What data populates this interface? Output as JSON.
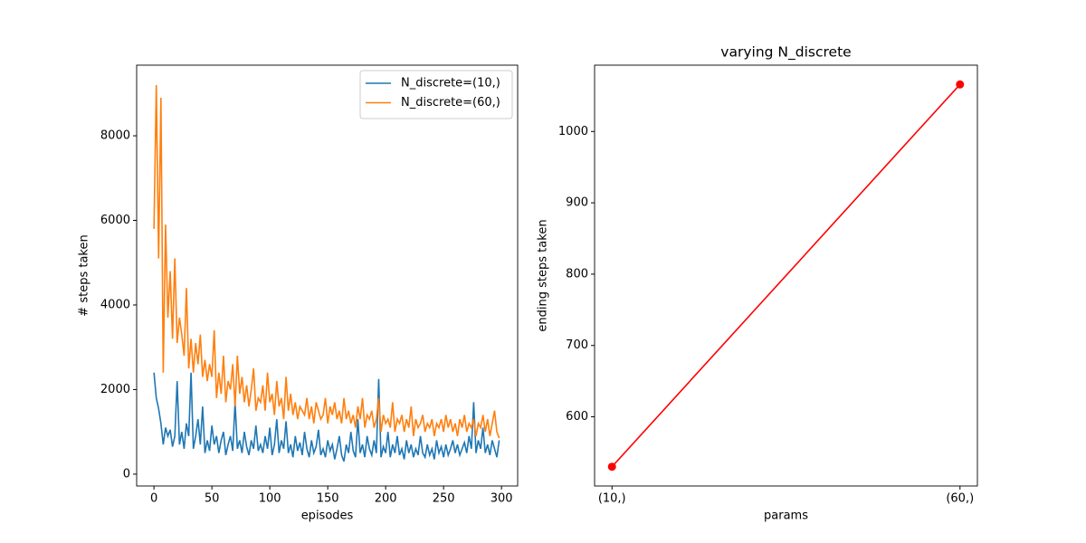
{
  "chart_data": [
    {
      "type": "line",
      "xlabel": "episodes",
      "ylabel": "# steps taken",
      "x": [
        0,
        2,
        4,
        6,
        8,
        10,
        12,
        14,
        16,
        18,
        20,
        22,
        24,
        26,
        28,
        30,
        32,
        34,
        36,
        38,
        40,
        42,
        44,
        46,
        48,
        50,
        52,
        54,
        56,
        58,
        60,
        62,
        64,
        66,
        68,
        70,
        72,
        74,
        76,
        78,
        80,
        82,
        84,
        86,
        88,
        90,
        92,
        94,
        96,
        98,
        100,
        102,
        104,
        106,
        108,
        110,
        112,
        114,
        116,
        118,
        120,
        122,
        124,
        126,
        128,
        130,
        132,
        134,
        136,
        138,
        140,
        142,
        144,
        146,
        148,
        150,
        152,
        154,
        156,
        158,
        160,
        162,
        164,
        166,
        168,
        170,
        172,
        174,
        176,
        178,
        180,
        182,
        184,
        186,
        188,
        190,
        192,
        194,
        196,
        198,
        200,
        202,
        204,
        206,
        208,
        210,
        212,
        214,
        216,
        218,
        220,
        222,
        224,
        226,
        228,
        230,
        232,
        234,
        236,
        238,
        240,
        242,
        244,
        246,
        248,
        250,
        252,
        254,
        256,
        258,
        260,
        262,
        264,
        266,
        268,
        270,
        272,
        274,
        276,
        278,
        280,
        282,
        284,
        286,
        288,
        290,
        292,
        294,
        296,
        298
      ],
      "series": [
        {
          "name": "N_discrete=(10,)",
          "color": "#1f77b4",
          "values": [
            2400,
            1800,
            1550,
            1200,
            700,
            1100,
            900,
            1050,
            650,
            900,
            2200,
            700,
            1000,
            600,
            1200,
            900,
            2400,
            600,
            900,
            1300,
            700,
            1600,
            500,
            800,
            550,
            1150,
            700,
            900,
            500,
            800,
            1000,
            450,
            700,
            900,
            550,
            1700,
            600,
            800,
            500,
            1000,
            650,
            450,
            800,
            600,
            1150,
            550,
            700,
            500,
            900,
            600,
            1100,
            450,
            700,
            1300,
            500,
            800,
            600,
            1250,
            500,
            700,
            400,
            900,
            550,
            750,
            450,
            1000,
            600,
            400,
            800,
            500,
            650,
            1050,
            450,
            600,
            400,
            800,
            550,
            700,
            350,
            600,
            900,
            450,
            300,
            700,
            500,
            1000,
            550,
            400,
            1300,
            500,
            700,
            400,
            900,
            600,
            450,
            800,
            500,
            2250,
            400,
            650,
            500,
            1000,
            400,
            700,
            500,
            900,
            450,
            600,
            350,
            800,
            500,
            700,
            400,
            600,
            450,
            900,
            500,
            400,
            700,
            450,
            600,
            350,
            800,
            500,
            650,
            400,
            700,
            450,
            600,
            800,
            500,
            700,
            450,
            600,
            750,
            500,
            900,
            600,
            1700,
            500,
            800,
            600,
            1100,
            500,
            700,
            450,
            800,
            600,
            400,
            800
          ]
        },
        {
          "name": "N_discrete=(60,)",
          "color": "#ff7f0e",
          "values": [
            5800,
            9200,
            5100,
            8900,
            2400,
            5900,
            3700,
            4800,
            3200,
            5100,
            3100,
            3700,
            3300,
            2800,
            4400,
            2500,
            3200,
            2400,
            3100,
            2600,
            3300,
            2300,
            2700,
            2200,
            2600,
            2300,
            3400,
            1800,
            2400,
            1900,
            2800,
            1700,
            2200,
            2000,
            2600,
            1600,
            2800,
            1900,
            2300,
            1700,
            2100,
            1600,
            2000,
            2500,
            1500,
            1800,
            1700,
            2100,
            1500,
            2400,
            1700,
            1900,
            1400,
            2200,
            1600,
            1800,
            1300,
            2300,
            1500,
            1900,
            1400,
            1700,
            1300,
            1600,
            1500,
            1400,
            1800,
            1300,
            1600,
            1200,
            1700,
            1500,
            1300,
            1400,
            1800,
            1200,
            1600,
            1400,
            1700,
            1300,
            1500,
            1200,
            1800,
            1300,
            1500,
            1200,
            1400,
            1100,
            1600,
            1300,
            1800,
            1100,
            1400,
            1300,
            1500,
            1100,
            1300,
            1800,
            1000,
            1400,
            1200,
            1300,
            1100,
            1700,
            1000,
            1300,
            1200,
            1400,
            1000,
            1300,
            1100,
            1600,
            900,
            1300,
            1100,
            1200,
            1400,
            1000,
            1200,
            1100,
            1300,
            900,
            1200,
            1100,
            1300,
            1000,
            1400,
            1100,
            1300,
            1000,
            1200,
            900,
            1300,
            1100,
            1400,
            1000,
            1200,
            1100,
            1300,
            900,
            1200,
            1100,
            1400,
            1000,
            1300,
            900,
            1200,
            1500,
            1000,
            850
          ]
        }
      ],
      "xlim": [
        -14.95,
        313.95
      ],
      "ylim": [
        -280,
        9670
      ],
      "xticks": [
        0,
        50,
        100,
        150,
        200,
        250,
        300
      ],
      "yticks": [
        0,
        2000,
        4000,
        6000,
        8000
      ],
      "legend": "upper right"
    },
    {
      "type": "line",
      "title": "varying N_discrete",
      "xlabel": "params",
      "ylabel": "ending steps taken",
      "categories": [
        "(10,)",
        "(60,)"
      ],
      "series": [
        {
          "color": "#ff0000",
          "values": [
            530,
            1066
          ]
        }
      ],
      "ylim": [
        503,
        1093
      ],
      "yticks": [
        600,
        700,
        800,
        900,
        1000
      ]
    }
  ]
}
